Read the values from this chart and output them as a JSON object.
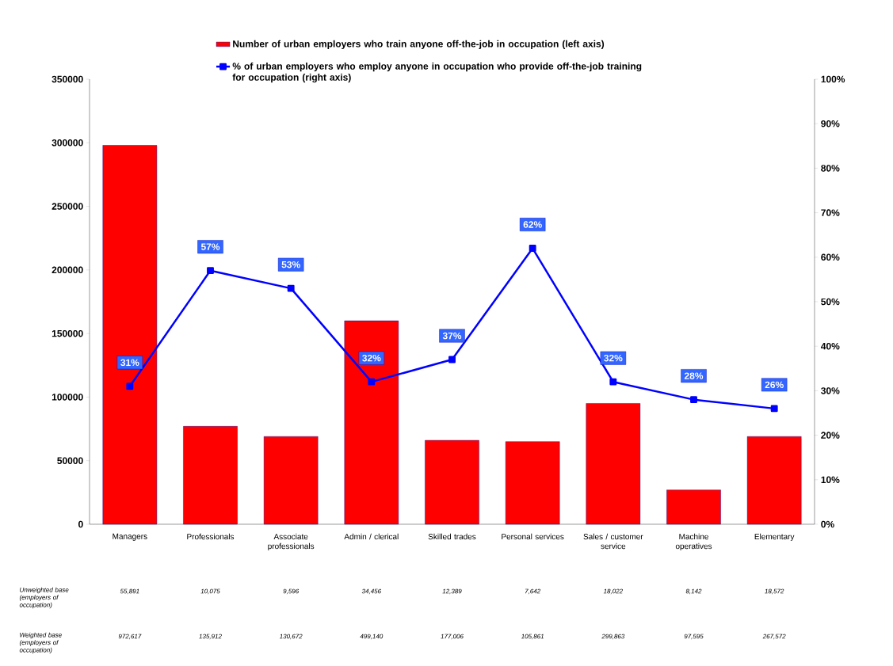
{
  "chart_data": {
    "type": "bar",
    "categories": [
      "Managers",
      "Professionals",
      "Associate professionals",
      "Admin / clerical",
      "Skilled trades",
      "Personal services",
      "Sales / customer service",
      "Machine operatives",
      "Elementary"
    ],
    "series": [
      {
        "name": "Number of urban employers who train anyone off-the-job in occupation (left axis)",
        "color": "#ff0000",
        "values": [
          298000,
          77000,
          69000,
          160000,
          66000,
          65000,
          95000,
          27000,
          69000
        ]
      },
      {
        "name": "% of urban employers who employ anyone in occupation who provide off-the-job training for occupation (right axis)",
        "type": "line",
        "axis": "y2",
        "color": "#0000ff",
        "marker": "square",
        "values": [
          31,
          57,
          53,
          32,
          37,
          62,
          32,
          28,
          26
        ],
        "value_labels": [
          "31%",
          "57%",
          "53%",
          "32%",
          "37%",
          "62%",
          "32%",
          "28%",
          "26%"
        ]
      }
    ],
    "ylim": [
      0,
      350000
    ],
    "yticks": [
      0,
      50000,
      100000,
      150000,
      200000,
      250000,
      300000,
      350000
    ],
    "y2lim": [
      0,
      100
    ],
    "y2ticks": [
      {
        "value": 0,
        "label": "0%"
      },
      {
        "value": 10,
        "label": "10%"
      },
      {
        "value": 20,
        "label": "20%"
      },
      {
        "value": 30,
        "label": "30%"
      },
      {
        "value": 40,
        "label": "40%"
      },
      {
        "value": 50,
        "label": "50%"
      },
      {
        "value": 60,
        "label": "60%"
      },
      {
        "value": 70,
        "label": "70%"
      },
      {
        "value": 80,
        "label": "80%"
      },
      {
        "value": 90,
        "label": "90%"
      },
      {
        "value": 100,
        "label": "100%"
      }
    ],
    "legend": "top",
    "grid": false,
    "annotations": [
      "Unweighted base (employers of occupation)",
      "55,891",
      "10,075",
      "9,596",
      "34,456",
      "12,389",
      "7,642",
      "18,022",
      "8,142",
      "18,572",
      "Weighted base (employers of occupation)",
      "972,617",
      "135,912",
      "130,672",
      "499,140",
      "177,006",
      "105,861",
      "299,863",
      "97,595",
      "267,572"
    ]
  }
}
